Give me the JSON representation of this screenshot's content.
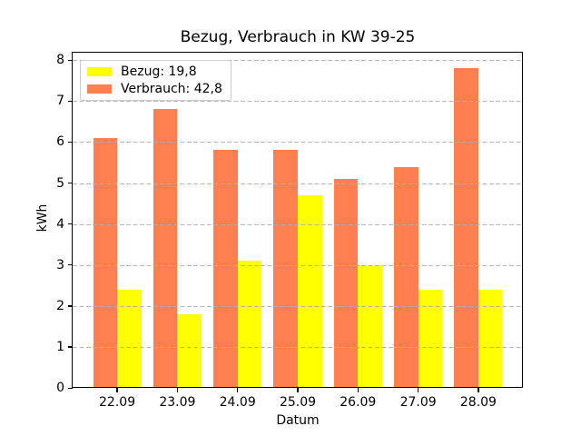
{
  "chart_data": {
    "type": "bar",
    "title": "Bezug, Verbrauch in KW 39-25",
    "xlabel": "Datum",
    "ylabel": "kWh",
    "categories": [
      "22.09",
      "23.09",
      "24.09",
      "25.09",
      "26.09",
      "27.09",
      "28.09"
    ],
    "series": [
      {
        "name": "Bezug",
        "legend_label": "Bezug: 19,8",
        "color": "#ffff00",
        "values": [
          2.4,
          1.8,
          3.1,
          4.7,
          3.0,
          2.4,
          2.4
        ]
      },
      {
        "name": "Verbrauch",
        "legend_label": "Verbrauch: 42,8",
        "color": "#ff7f50",
        "values": [
          6.1,
          6.8,
          5.8,
          5.8,
          5.1,
          5.4,
          7.8
        ]
      }
    ],
    "ylim": [
      0,
      8.19
    ],
    "yticks": [
      0,
      1,
      2,
      3,
      4,
      5,
      6,
      7,
      8
    ],
    "grid": {
      "axis": "y",
      "style": "dashed",
      "color": "#b0b0b0",
      "above_bars": true
    },
    "legend": {
      "position": "upper-left",
      "border_color": "#cccccc",
      "background": "#ffffff"
    },
    "axis_color": "#000000",
    "background": "#ffffff"
  }
}
